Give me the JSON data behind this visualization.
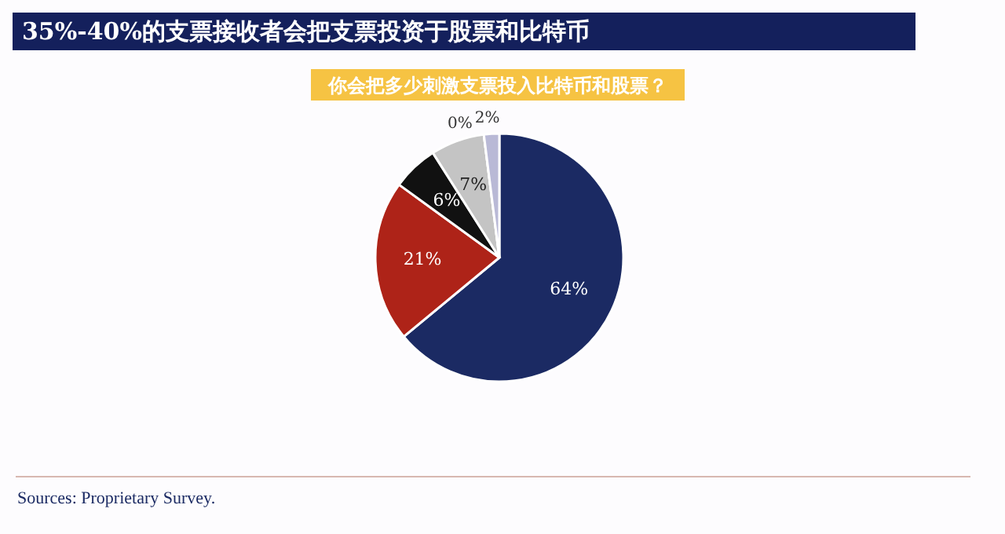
{
  "chart_data": {
    "type": "pie",
    "title": "35%-40%的支票接收者会把支票投资于股票和比特币",
    "subtitle": "你会把多少刺激支票投入比特币和股票？",
    "categories": [
      null,
      null,
      null,
      null,
      null,
      null
    ],
    "values": [
      64,
      21,
      6,
      7,
      0,
      2
    ],
    "colors": [
      "#1b2a63",
      "#ae2318",
      "#111111",
      "#c4c4c4",
      "#ffffff",
      "#b9b9d6"
    ],
    "value_labels": [
      "64%",
      "21%",
      "6%",
      "7%",
      "0%",
      "2%"
    ],
    "annotations": [
      "Sources: Proprietary Survey."
    ]
  }
}
